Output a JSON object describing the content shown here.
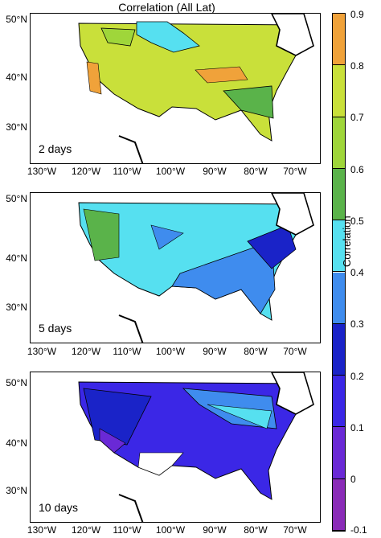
{
  "title": "Correlation (All Lat)",
  "panels": [
    {
      "label": "2 days",
      "palette": "high"
    },
    {
      "label": "5 days",
      "palette": "mid"
    },
    {
      "label": "10 days",
      "palette": "low"
    }
  ],
  "lat_labels": [
    "50°N",
    "40°N",
    "30°N"
  ],
  "lon_labels": [
    "130°W",
    "120°W",
    "110°W",
    "100°W",
    "90°W",
    "80°W",
    "70°W"
  ],
  "colorbar": {
    "title": "Correlation",
    "ticks": [
      "0.9",
      "0.8",
      "0.7",
      "0.6",
      "0.5",
      "0.4",
      "0.3",
      "0.2",
      "0.1",
      "0",
      "-0.1"
    ],
    "colors": [
      "#f0a23a",
      "#c9e03a",
      "#9fd63a",
      "#5ab34a",
      "#56e0f0",
      "#3f8cee",
      "#1a23c8",
      "#3b27e6",
      "#6a29d6",
      "#8a2bb8"
    ]
  }
}
